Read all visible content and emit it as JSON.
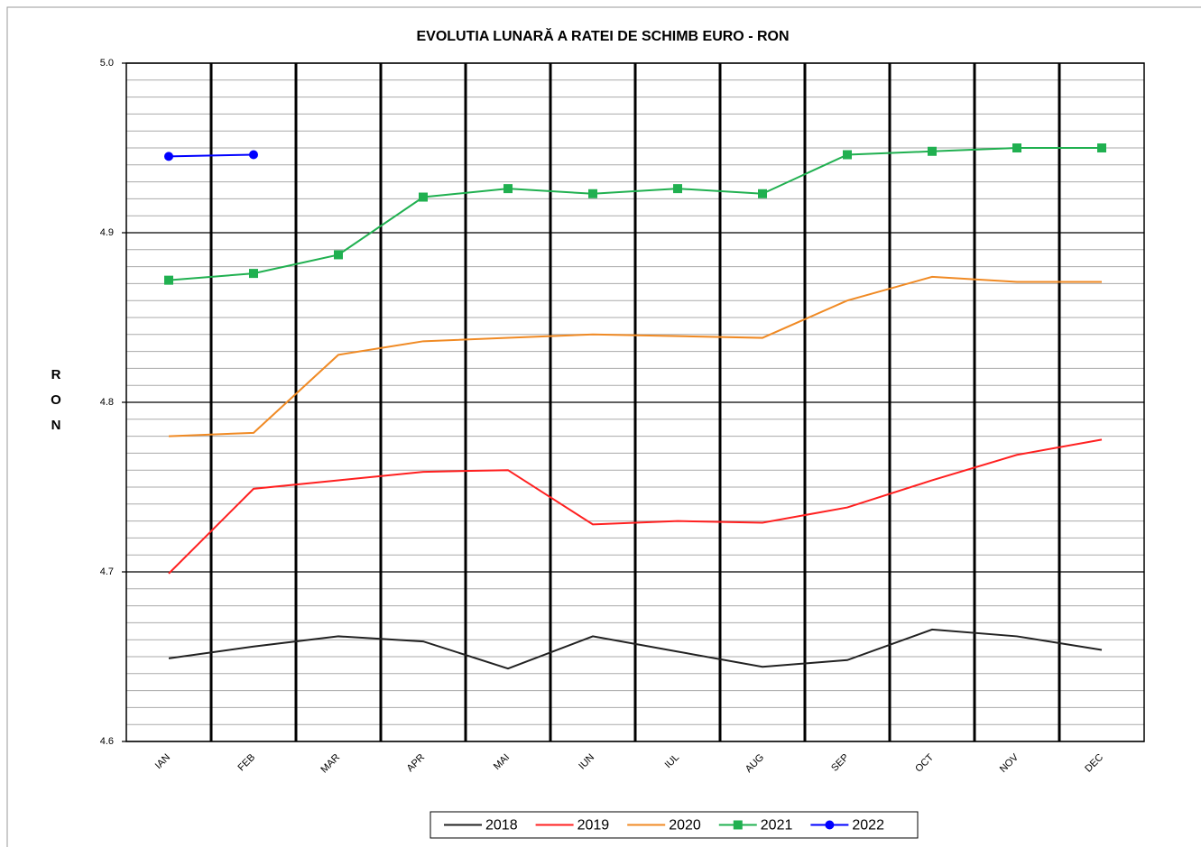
{
  "chart_data": {
    "type": "line",
    "title": "EVOLUTIA LUNARĂ A RATEI DE SCHIMB EURO - RON",
    "y_label": "RON",
    "categories": [
      "IAN",
      "FEB",
      "MAR",
      "APR",
      "MAI",
      "IUN",
      "IUL",
      "AUG",
      "SEP",
      "OCT",
      "NOV",
      "DEC"
    ],
    "series": [
      {
        "name": "2018",
        "color": "#222222",
        "marker": "none",
        "values": [
          4.649,
          4.656,
          4.662,
          4.659,
          4.643,
          4.662,
          4.653,
          4.644,
          4.648,
          4.666,
          4.662,
          4.654
        ]
      },
      {
        "name": "2019",
        "color": "#ff2020",
        "marker": "none",
        "values": [
          4.699,
          4.749,
          4.754,
          4.759,
          4.76,
          4.728,
          4.73,
          4.729,
          4.738,
          4.754,
          4.769,
          4.778
        ]
      },
      {
        "name": "2020",
        "color": "#f08a24",
        "marker": "none",
        "values": [
          4.78,
          4.782,
          4.828,
          4.836,
          4.838,
          4.84,
          4.839,
          4.838,
          4.86,
          4.874,
          4.871,
          4.871
        ]
      },
      {
        "name": "2021",
        "color": "#20b050",
        "marker": "square",
        "values": [
          4.872,
          4.876,
          4.887,
          4.921,
          4.926,
          4.923,
          4.926,
          4.923,
          4.946,
          4.948,
          4.95,
          4.95
        ]
      },
      {
        "name": "2022",
        "color": "#0000ff",
        "marker": "circle",
        "values": [
          4.945,
          4.946,
          null,
          null,
          null,
          null,
          null,
          null,
          null,
          null,
          null,
          null
        ]
      }
    ],
    "ylim": [
      4.6,
      5.0
    ],
    "yticks": [
      4.6,
      4.7,
      4.8,
      4.9,
      {
        "value": 5.0,
        "label": "5.0"
      }
    ],
    "minor_ytick_step": 0.01,
    "grid": true,
    "legend": "bottom"
  }
}
